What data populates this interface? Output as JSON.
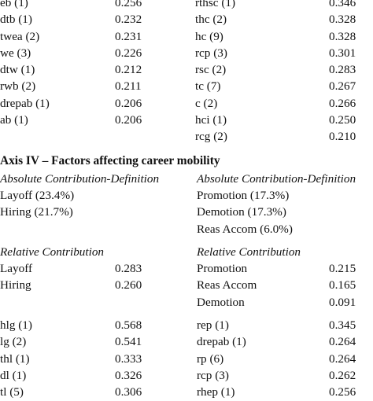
{
  "top_rows": [
    {
      "l_key": "eb (1)",
      "l_val": "0.256",
      "r_key": "rthsc (1)",
      "r_val": "0.346"
    },
    {
      "l_key": "dtb (1)",
      "l_val": "0.232",
      "r_key": "thc (2)",
      "r_val": "0.328"
    },
    {
      "l_key": "twea (2)",
      "l_val": "0.231",
      "r_key": "hc (9)",
      "r_val": "0.328"
    },
    {
      "l_key": "we (3)",
      "l_val": "0.226",
      "r_key": "rcp (3)",
      "r_val": "0.301"
    },
    {
      "l_key": "dtw (1)",
      "l_val": "0.212",
      "r_key": "rsc (2)",
      "r_val": "0.283"
    },
    {
      "l_key": "rwb (2)",
      "l_val": "0.211",
      "r_key": "tc (7)",
      "r_val": "0.267"
    },
    {
      "l_key": "drepab (1)",
      "l_val": "0.206",
      "r_key": "c (2)",
      "r_val": "0.266"
    },
    {
      "l_key": "ab (1)",
      "l_val": "0.206",
      "r_key": "hci (1)",
      "r_val": "0.250"
    },
    {
      "l_key": "",
      "l_val": "",
      "r_key": "rcg (2)",
      "r_val": "0.210"
    }
  ],
  "axis_title": "Axis IV – Factors affecting career mobility",
  "abs_heading_left": "Absolute Contribution-Definition",
  "abs_heading_right": "Absolute Contribution-Definition",
  "abs_rows": [
    {
      "l_key": "Layoff (23.4%)",
      "r_key": "Promotion (17.3%)"
    },
    {
      "l_key": "Hiring (21.7%)",
      "r_key": "Demotion (17.3%)"
    },
    {
      "l_key": "",
      "r_key": "Reas Accom (6.0%)"
    }
  ],
  "rel_heading_left": "Relative Contribution",
  "rel_heading_right": "Relative Contribution",
  "rel_rows": [
    {
      "l_key": "Layoff",
      "l_val": "0.283",
      "r_key": "Promotion",
      "r_val": "0.215"
    },
    {
      "l_key": "Hiring",
      "l_val": "0.260",
      "r_key": "Reas Accom",
      "r_val": "0.165"
    },
    {
      "l_key": "",
      "l_val": "",
      "r_key": "Demotion",
      "r_val": "0.091"
    }
  ],
  "bottom_rows": [
    {
      "l_key": "hlg (1)",
      "l_val": "0.568",
      "r_key": "rep (1)",
      "r_val": "0.345"
    },
    {
      "l_key": "lg (2)",
      "l_val": "0.541",
      "r_key": "drepab (1)",
      "r_val": "0.264"
    },
    {
      "l_key": "thl (1)",
      "l_val": "0.333",
      "r_key": "rp (6)",
      "r_val": "0.264"
    },
    {
      "l_key": "dl (1)",
      "l_val": "0.326",
      "r_key": "rcp (3)",
      "r_val": "0.262"
    },
    {
      "l_key": "tl (5)",
      "l_val": "0.306",
      "r_key": "rhep (1)",
      "r_val": "0.256"
    }
  ]
}
